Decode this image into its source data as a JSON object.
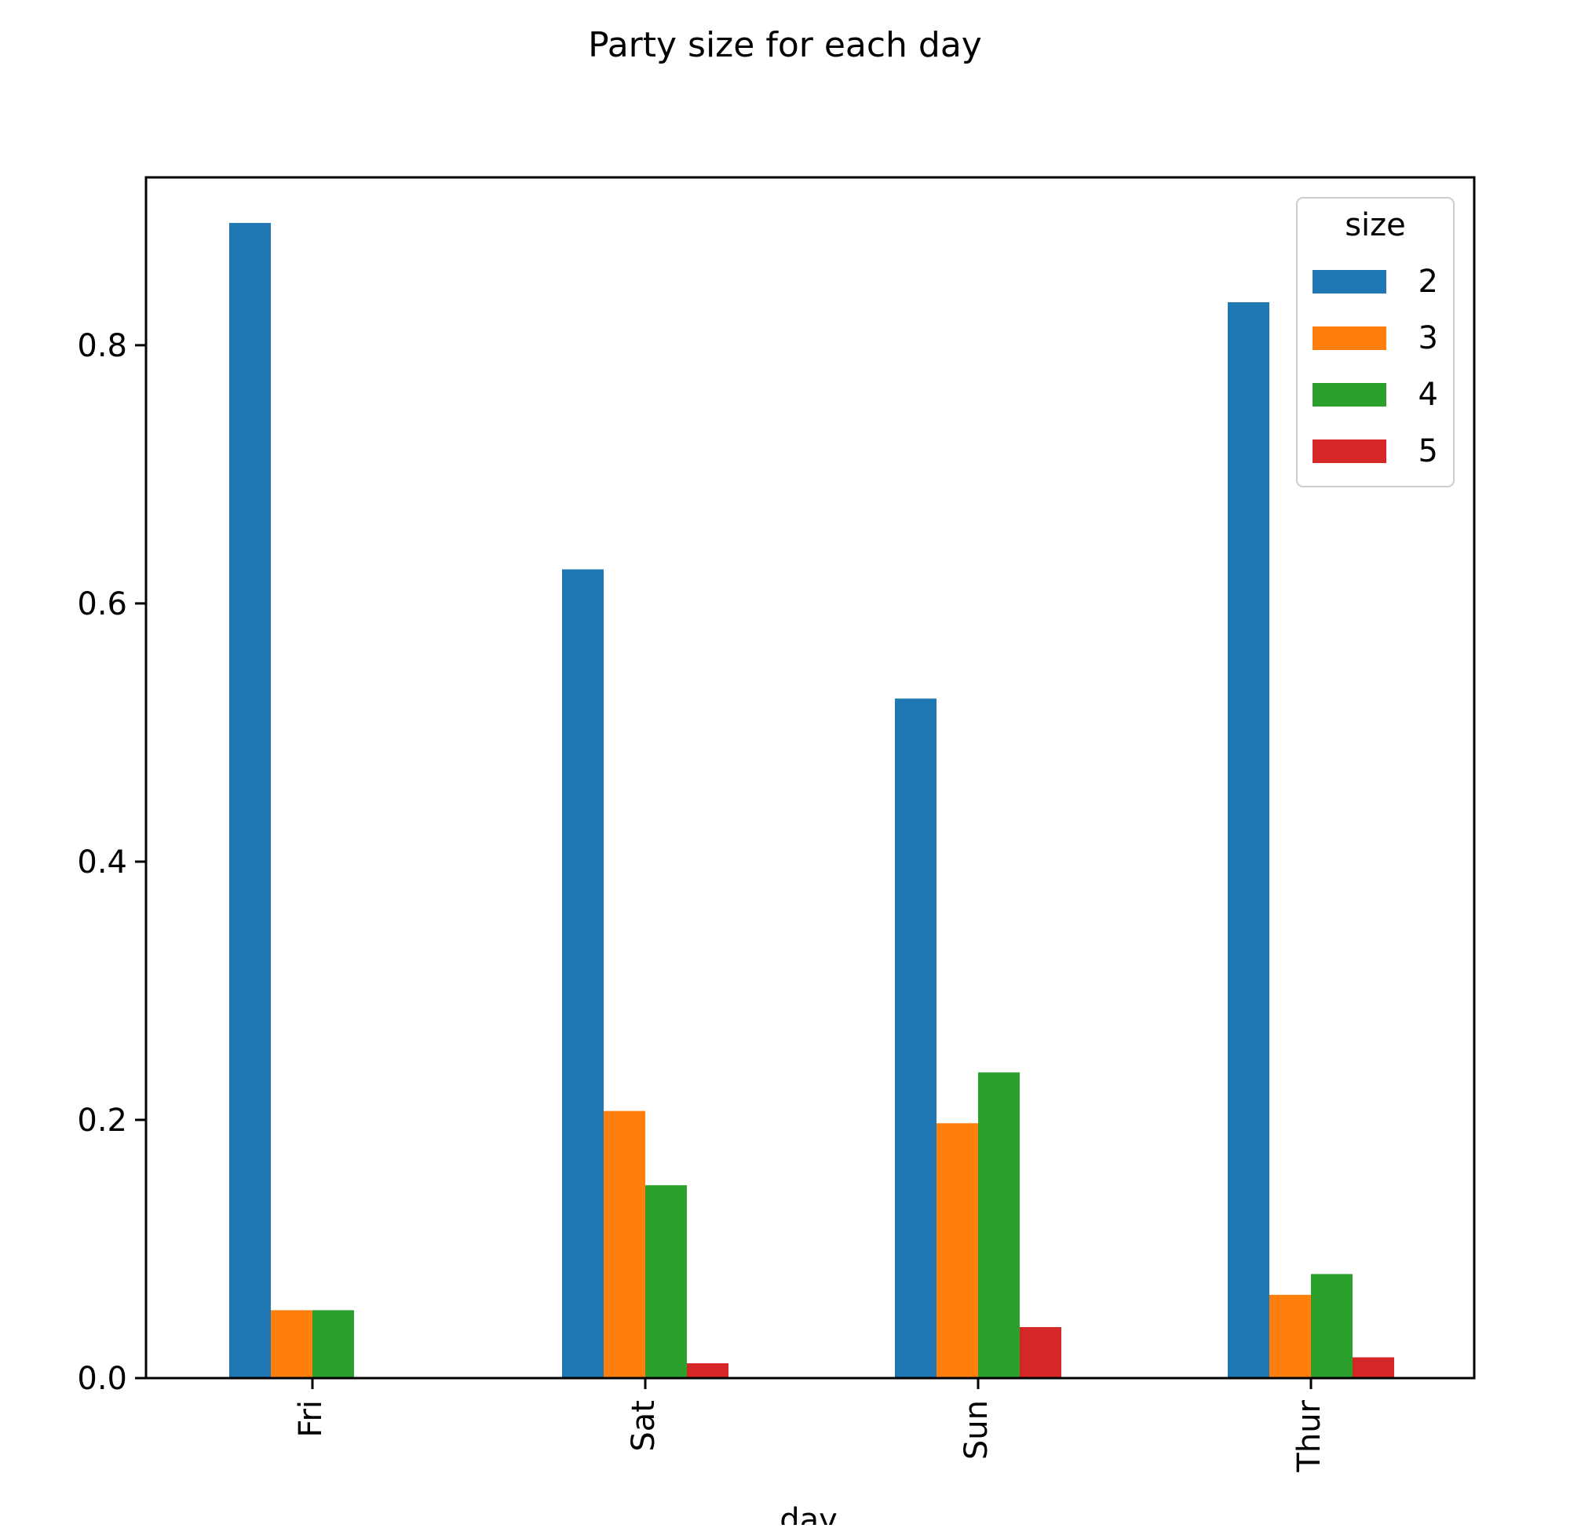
{
  "chart_data": {
    "type": "bar",
    "title": "Party size for each day",
    "xlabel": "day",
    "ylabel": "",
    "categories": [
      "Fri",
      "Sat",
      "Sun",
      "Thur"
    ],
    "series": [
      {
        "name": "2",
        "color": "#1f77b4",
        "values": [
          0.8947,
          0.6264,
          0.5263,
          0.8333
        ]
      },
      {
        "name": "3",
        "color": "#ff7f0e",
        "values": [
          0.0526,
          0.2069,
          0.1974,
          0.0645
        ]
      },
      {
        "name": "4",
        "color": "#2ca02c",
        "values": [
          0.0526,
          0.1494,
          0.2368,
          0.0806
        ]
      },
      {
        "name": "5",
        "color": "#d62728",
        "values": [
          0.0,
          0.0115,
          0.0395,
          0.0161
        ]
      }
    ],
    "ylim": [
      0,
      0.93
    ],
    "yticks": [
      0.0,
      0.2,
      0.4,
      0.6,
      0.8
    ],
    "ytick_labels": [
      "0.0",
      "0.2",
      "0.4",
      "0.6",
      "0.8"
    ],
    "xtick_rotation": 90,
    "legend": {
      "title": "size",
      "placement": "top-right"
    },
    "grid": false
  }
}
